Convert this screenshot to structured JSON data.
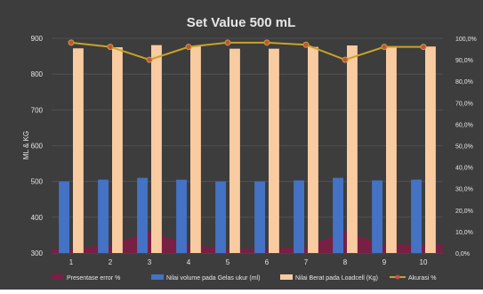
{
  "chart_data": {
    "type": "bar",
    "title": "Set Value 500 mL",
    "ylabel": "ML & KG",
    "y2label": "",
    "categories": [
      "1",
      "2",
      "3",
      "4",
      "5",
      "6",
      "7",
      "8",
      "9",
      "10"
    ],
    "ylim": [
      300,
      900
    ],
    "y_ticks": [
      300,
      400,
      500,
      600,
      700,
      800,
      900
    ],
    "y2lim": [
      0,
      100
    ],
    "y2_ticks": [
      "0,0%",
      "10,0%",
      "20,0%",
      "30,0%",
      "40,0%",
      "50,0%",
      "60,0%",
      "70,0%",
      "80,0%",
      "90,0%",
      "100,0%"
    ],
    "grid": true,
    "legend_position": "bottom",
    "series": [
      {
        "name": "Presentase error %",
        "kind": "area",
        "axis": "secondary",
        "values": [
          2,
          4,
          10,
          4,
          2,
          2,
          3,
          10,
          4,
          4
        ]
      },
      {
        "name": "Nilai volume pada Gelas  ukur (ml)",
        "kind": "bar",
        "axis": "primary",
        "values": [
          500,
          505,
          510,
          505,
          500,
          500,
          503,
          510,
          503,
          505
        ]
      },
      {
        "name": "Nilai Berat pada Loadcell (Kg)",
        "kind": "bar",
        "axis": "primary",
        "values": [
          872,
          875,
          881,
          878,
          871,
          871,
          876,
          880,
          875,
          877
        ]
      },
      {
        "name": "Akurasi %",
        "kind": "line",
        "axis": "secondary",
        "values": [
          98,
          96,
          90,
          96,
          98,
          98,
          97,
          90,
          96,
          96
        ]
      }
    ],
    "colors": {
      "background": "#3d3d3d",
      "grid": "#555555",
      "text": "#e6e6e6",
      "error_area": "#7a1f45",
      "volume_bar": "#4472c4",
      "weight_bar": "#f8cba0",
      "accuracy_line": "#c9a227",
      "accuracy_marker": "#c0504d"
    }
  }
}
